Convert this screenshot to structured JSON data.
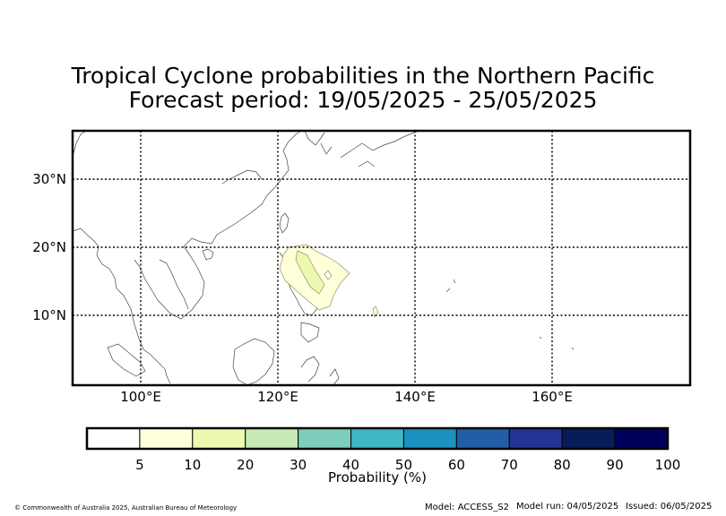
{
  "title_line1": "Tropical Cyclone probabilities in the Northern Pacific",
  "title_line2": "Forecast period: 19/05/2025 - 25/05/2025",
  "map": {
    "lon_range": [
      90,
      180
    ],
    "lat_range": [
      0,
      37
    ],
    "lon_ticks": [
      "100°E",
      "120°E",
      "140°E",
      "160°E"
    ],
    "lat_ticks": [
      "30°N",
      "20°N",
      "10°N"
    ],
    "gridlines": true
  },
  "colorbar": {
    "label": "Probability (%)",
    "ticks": [
      "5",
      "10",
      "20",
      "30",
      "40",
      "50",
      "60",
      "70",
      "80",
      "90",
      "100"
    ],
    "colors": [
      "#ffffff",
      "#ffffd9",
      "#edf8b1",
      "#c7e9b4",
      "#7fcdbb",
      "#41b6c4",
      "#1d91c0",
      "#225ea8",
      "#253494",
      "#081d58",
      "#00005a"
    ]
  },
  "footer": {
    "copyright": "© Commonwealth of Australia 2025, Australian Bureau of Meteorology",
    "model": "Model: ACCESS_S2",
    "model_run": "Model run: 04/05/2025",
    "issued": "Issued: 06/05/2025"
  }
}
